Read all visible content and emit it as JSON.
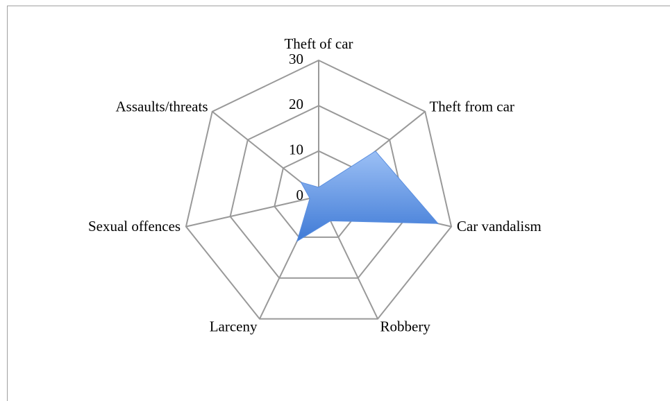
{
  "chart_data": {
    "type": "radar",
    "categories": [
      "Theft of car",
      "Theft from car",
      "Car vandalism",
      "Robbery",
      "Larceny",
      "Sexual offences",
      "Assaults/threats"
    ],
    "values": [
      2,
      16,
      27,
      6,
      11,
      2,
      5
    ],
    "color": "#5b8fe0",
    "ylim": [
      0,
      30
    ],
    "yticks": [
      0,
      10,
      20,
      30
    ],
    "grid": true
  }
}
